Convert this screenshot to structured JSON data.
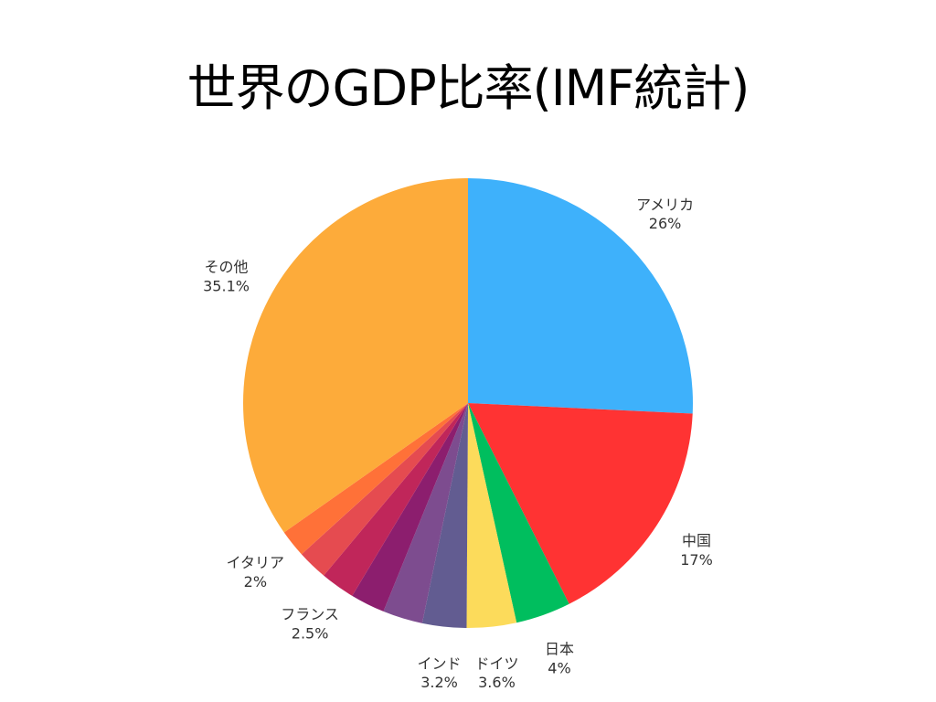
{
  "chart_data": {
    "type": "pie",
    "title": "世界のGDP比率(IMF統計)",
    "slices": [
      {
        "label": "アメリカ",
        "value": 26,
        "value_label": "26%",
        "color": "#3EB1FB",
        "show_label": true
      },
      {
        "label": "中国",
        "value": 17,
        "value_label": "17%",
        "color": "#FF3333",
        "show_label": true
      },
      {
        "label": "日本",
        "value": 4,
        "value_label": "4%",
        "color": "#00BE5E",
        "show_label": true
      },
      {
        "label": "ドイツ",
        "value": 3.6,
        "value_label": "3.6%",
        "color": "#FCDB5B",
        "show_label": true
      },
      {
        "label": "インド",
        "value": 3.2,
        "value_label": "3.2%",
        "color": "#625C91",
        "show_label": true
      },
      {
        "label": "",
        "value": 2.9,
        "value_label": "",
        "color": "#7D4C8F",
        "show_label": false
      },
      {
        "label": "",
        "value": 2.5,
        "value_label": "",
        "color": "#8C1E6E",
        "show_label": false
      },
      {
        "label": "フランス",
        "value": 2.5,
        "value_label": "2.5%",
        "color": "#C0265A",
        "show_label": true
      },
      {
        "label": "",
        "value": 2.2,
        "value_label": "",
        "color": "#E54B50",
        "show_label": false
      },
      {
        "label": "イタリア",
        "value": 2,
        "value_label": "2%",
        "color": "#FF7138",
        "show_label": true
      },
      {
        "label": "その他",
        "value": 35.1,
        "value_label": "35.1%",
        "color": "#FDAB3A",
        "show_label": true
      }
    ]
  }
}
